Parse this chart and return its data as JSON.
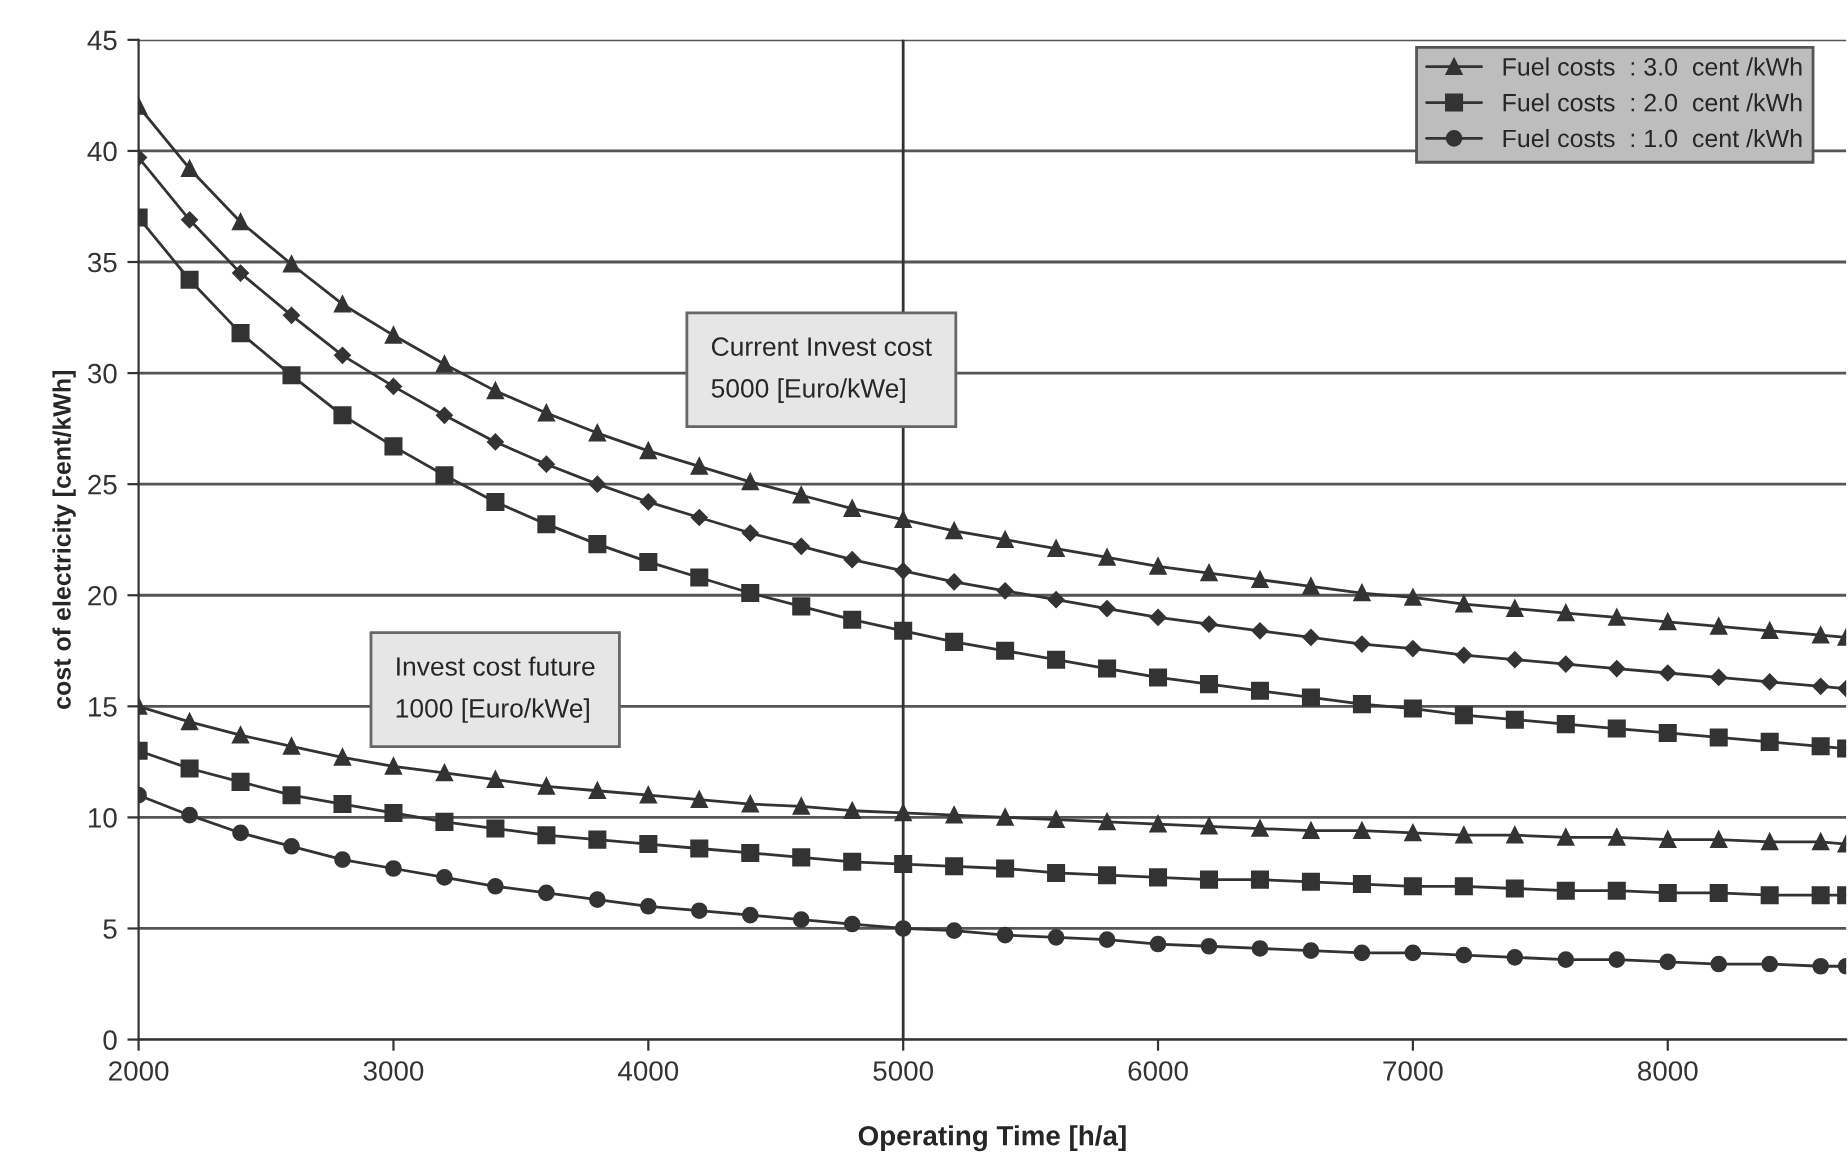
{
  "chart_data": {
    "type": "line",
    "xlabel": "Operating Time [h/a]",
    "ylabel": "cost of electricity [cent/kWh]",
    "x": [
      2000,
      2200,
      2400,
      2600,
      2800,
      3000,
      3200,
      3400,
      3600,
      3800,
      4000,
      4200,
      4400,
      4600,
      4800,
      5000,
      5200,
      5400,
      5600,
      5800,
      6000,
      6200,
      6400,
      6600,
      6800,
      7000,
      7200,
      7400,
      7600,
      7800,
      8000,
      8200,
      8400,
      8600,
      8700
    ],
    "series": [
      {
        "name": "Fuel costs  : 3.0  cent /kWh",
        "color": "#333333",
        "marker": "triangle",
        "values": [
          15.0,
          14.3,
          13.7,
          13.2,
          12.7,
          12.3,
          12.0,
          11.7,
          11.4,
          11.2,
          11.0,
          10.8,
          10.6,
          10.5,
          10.3,
          10.2,
          10.1,
          10.0,
          9.9,
          9.8,
          9.7,
          9.6,
          9.5,
          9.4,
          9.4,
          9.3,
          9.2,
          9.2,
          9.1,
          9.1,
          9.0,
          9.0,
          8.9,
          8.9,
          8.8
        ]
      },
      {
        "name": "Fuel costs  : 2.0  cent /kWh",
        "color": "#333333",
        "marker": "square",
        "values": [
          13.0,
          12.2,
          11.6,
          11.0,
          10.6,
          10.2,
          9.8,
          9.5,
          9.2,
          9.0,
          8.8,
          8.6,
          8.4,
          8.2,
          8.0,
          7.9,
          7.8,
          7.7,
          7.5,
          7.4,
          7.3,
          7.2,
          7.2,
          7.1,
          7.0,
          6.9,
          6.9,
          6.8,
          6.7,
          6.7,
          6.6,
          6.6,
          6.5,
          6.5,
          6.5
        ]
      },
      {
        "name": "Fuel costs  : 1.0  cent /kWh",
        "color": "#333333",
        "marker": "circle",
        "values": [
          11.0,
          10.1,
          9.3,
          8.7,
          8.1,
          7.7,
          7.3,
          6.9,
          6.6,
          6.3,
          6.0,
          5.8,
          5.6,
          5.4,
          5.2,
          5.0,
          4.9,
          4.7,
          4.6,
          4.5,
          4.3,
          4.2,
          4.1,
          4.0,
          3.9,
          3.9,
          3.8,
          3.7,
          3.6,
          3.6,
          3.5,
          3.4,
          3.4,
          3.3,
          3.3
        ]
      },
      {
        "color": "#333333",
        "marker": "triangle",
        "values": [
          42.0,
          39.2,
          36.8,
          34.9,
          33.1,
          31.7,
          30.4,
          29.2,
          28.2,
          27.3,
          26.5,
          25.8,
          25.1,
          24.5,
          23.9,
          23.4,
          22.9,
          22.5,
          22.1,
          21.7,
          21.3,
          21.0,
          20.7,
          20.4,
          20.1,
          19.9,
          19.6,
          19.4,
          19.2,
          19.0,
          18.8,
          18.6,
          18.4,
          18.2,
          18.1
        ]
      },
      {
        "color": "#333333",
        "marker": "diamond",
        "values": [
          39.7,
          36.9,
          34.5,
          32.6,
          30.8,
          29.4,
          28.1,
          26.9,
          25.9,
          25.0,
          24.2,
          23.5,
          22.8,
          22.2,
          21.6,
          21.1,
          20.6,
          20.2,
          19.8,
          19.4,
          19.0,
          18.7,
          18.4,
          18.1,
          17.8,
          17.6,
          17.3,
          17.1,
          16.9,
          16.7,
          16.5,
          16.3,
          16.1,
          15.9,
          15.8
        ]
      },
      {
        "color": "#333333",
        "marker": "square",
        "values": [
          37.0,
          34.2,
          31.8,
          29.9,
          28.1,
          26.7,
          25.4,
          24.2,
          23.2,
          22.3,
          21.5,
          20.8,
          20.1,
          19.5,
          18.9,
          18.4,
          17.9,
          17.5,
          17.1,
          16.7,
          16.3,
          16.0,
          15.7,
          15.4,
          15.1,
          14.9,
          14.6,
          14.4,
          14.2,
          14.0,
          13.8,
          13.6,
          13.4,
          13.2,
          13.1
        ]
      }
    ],
    "xlim": [
      2000,
      8700
    ],
    "xticks": [
      2000,
      3000,
      4000,
      5000,
      6000,
      7000,
      8000
    ],
    "ylim": [
      0,
      45
    ],
    "yticks": [
      0,
      5,
      10,
      15,
      20,
      25,
      30,
      35,
      40,
      45
    ],
    "grid": "y",
    "legend": "top right",
    "line_style": "solid",
    "ref_lines": [
      {
        "axis": "x",
        "value": 5000,
        "color": "#333333"
      }
    ],
    "annotations": [
      "Current Invest cost\n5000 [Euro/kWe]",
      "Invest cost future\n1000 [Euro/kWe]"
    ]
  }
}
